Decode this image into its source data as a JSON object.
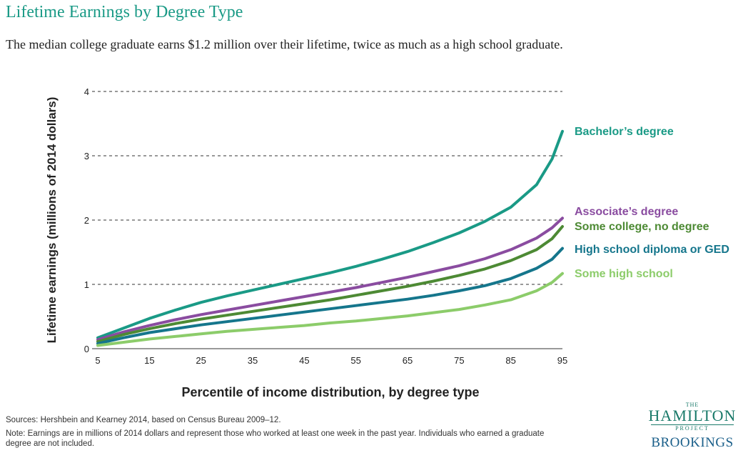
{
  "header": {
    "title": "Lifetime Earnings by Degree Type",
    "subtitle": "The median college graduate earns $1.2 million over their lifetime, twice as much as a high school graduate."
  },
  "chart_data": {
    "type": "line",
    "xlabel": "Percentile of income distribution, by degree type",
    "ylabel": "Lifetime earnings (millions of 2014 dollars)",
    "xlim": [
      5,
      95
    ],
    "ylim": [
      0,
      4
    ],
    "xticks": [
      5,
      15,
      25,
      35,
      45,
      55,
      65,
      75,
      85,
      95
    ],
    "yticks": [
      0,
      1,
      2,
      3,
      4
    ],
    "grid": "horizontal dashed",
    "legend": "right end of each line",
    "x": [
      5,
      10,
      15,
      20,
      25,
      30,
      35,
      40,
      45,
      50,
      55,
      60,
      65,
      70,
      75,
      80,
      85,
      90,
      93,
      95
    ],
    "series": [
      {
        "name": "Bachelor’s degree",
        "color": "#1a9a86",
        "values": [
          0.17,
          0.32,
          0.47,
          0.6,
          0.72,
          0.82,
          0.91,
          1.0,
          1.09,
          1.18,
          1.28,
          1.39,
          1.51,
          1.65,
          1.8,
          1.98,
          2.2,
          2.55,
          2.95,
          3.38
        ]
      },
      {
        "name": "Associate’s degree",
        "color": "#8a4ca0",
        "values": [
          0.14,
          0.26,
          0.36,
          0.45,
          0.53,
          0.6,
          0.67,
          0.74,
          0.81,
          0.88,
          0.95,
          1.03,
          1.11,
          1.2,
          1.29,
          1.4,
          1.54,
          1.72,
          1.88,
          2.03
        ]
      },
      {
        "name": "Some college, no degree",
        "color": "#4d8a34",
        "values": [
          0.11,
          0.22,
          0.31,
          0.39,
          0.46,
          0.52,
          0.58,
          0.64,
          0.7,
          0.76,
          0.83,
          0.9,
          0.97,
          1.05,
          1.14,
          1.24,
          1.37,
          1.54,
          1.71,
          1.9
        ]
      },
      {
        "name": "High school diploma or GED",
        "color": "#15768c",
        "values": [
          0.08,
          0.17,
          0.25,
          0.31,
          0.37,
          0.42,
          0.47,
          0.52,
          0.57,
          0.62,
          0.67,
          0.72,
          0.77,
          0.83,
          0.9,
          0.98,
          1.09,
          1.25,
          1.39,
          1.56
        ]
      },
      {
        "name": "Some high school",
        "color": "#8ccc6a",
        "values": [
          0.05,
          0.1,
          0.15,
          0.19,
          0.23,
          0.27,
          0.3,
          0.33,
          0.36,
          0.4,
          0.43,
          0.47,
          0.51,
          0.56,
          0.61,
          0.68,
          0.76,
          0.9,
          1.03,
          1.17
        ]
      }
    ]
  },
  "footer": {
    "sources": "Sources: Hershbein and Kearney 2014, based on Census Bureau 2009–12.",
    "note": "Note: Earnings are in millions of 2014 dollars and represent those who worked at least one week in the past year. Individuals who earned a graduate degree are not included."
  },
  "logo": {
    "the": "THE",
    "hamilton": "HAMILTON",
    "project": "PROJECT",
    "brookings": "BROOKINGS"
  }
}
